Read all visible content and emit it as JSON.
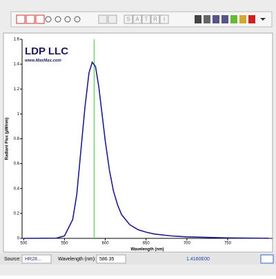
{
  "toolbar": {
    "letters": [
      "S",
      "A",
      "T",
      "R",
      "I"
    ]
  },
  "chart_data": {
    "type": "line",
    "annotation": "LDP LLC",
    "annotation_url": "www.MaxMax.com",
    "x_label": "Wavelength (nm)",
    "y_label": "Radiant Flux (µW/nm)",
    "x": [
      500,
      540,
      550,
      560,
      565,
      570,
      575,
      580,
      584,
      588,
      592,
      596,
      600,
      605,
      610,
      615,
      620,
      630,
      640,
      650,
      660,
      680,
      700,
      750,
      800
    ],
    "series": [
      {
        "color": "#1c1c8a",
        "values": [
          0.0,
          0.002,
          0.02,
          0.15,
          0.35,
          0.7,
          1.05,
          1.33,
          1.416,
          1.38,
          1.22,
          1.0,
          0.78,
          0.55,
          0.38,
          0.27,
          0.19,
          0.11,
          0.07,
          0.05,
          0.035,
          0.02,
          0.012,
          0.004,
          0.001
        ]
      }
    ],
    "xlim": [
      498,
      805
    ],
    "xticks": [
      500,
      550,
      600,
      650,
      700,
      750
    ],
    "ylim": [
      0,
      1.6
    ],
    "yticks": [
      0,
      0.2,
      0.4,
      0.6,
      0.8,
      1,
      1.2,
      1.4,
      1.6
    ],
    "cursor_x": 586.35,
    "cursor_color": "#55cc55"
  },
  "status_bar": {
    "source_label": "Source:",
    "source": "HR28...",
    "wavelength_label": "Wavelength (nm):",
    "value": "1.4160E00"
  }
}
